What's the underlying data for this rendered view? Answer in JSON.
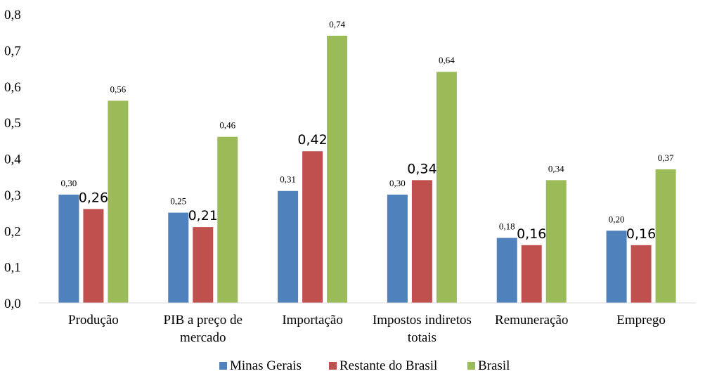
{
  "chart_data": {
    "type": "bar",
    "title": "",
    "xlabel": "",
    "ylabel": "",
    "ylim": [
      0,
      0.8
    ],
    "yticks": [
      "0,0",
      "0,1",
      "0,2",
      "0,3",
      "0,4",
      "0,5",
      "0,6",
      "0,7",
      "0,8"
    ],
    "grid": false,
    "legend_position": "bottom",
    "categories": [
      [
        "Produção"
      ],
      [
        "PIB a preço de",
        "mercado"
      ],
      [
        "Importação"
      ],
      [
        "Impostos indiretos",
        "totais"
      ],
      [
        "Remuneração"
      ],
      [
        "Emprego"
      ]
    ],
    "series": [
      {
        "name": "Minas Gerais",
        "color": "#4f81bd",
        "values": [
          0.3,
          0.25,
          0.31,
          0.3,
          0.18,
          0.2
        ],
        "labels": [
          "0,30",
          "0,25",
          "0,31",
          "0,30",
          "0,18",
          "0,20"
        ],
        "label_style": "serif-small"
      },
      {
        "name": "Restante do Brasil",
        "color": "#c0504d",
        "values": [
          0.26,
          0.21,
          0.42,
          0.34,
          0.16,
          0.16
        ],
        "labels": [
          "0,26",
          "0,21",
          "0,42",
          "0,34",
          "0,16",
          "0,16"
        ],
        "label_style": "sans-large"
      },
      {
        "name": "Brasil",
        "color": "#9bbb59",
        "values": [
          0.56,
          0.46,
          0.74,
          0.64,
          0.34,
          0.37
        ],
        "labels": [
          "0,56",
          "0,46",
          "0,74",
          "0,64",
          "0,34",
          "0,37"
        ],
        "label_style": "serif-small"
      }
    ]
  }
}
